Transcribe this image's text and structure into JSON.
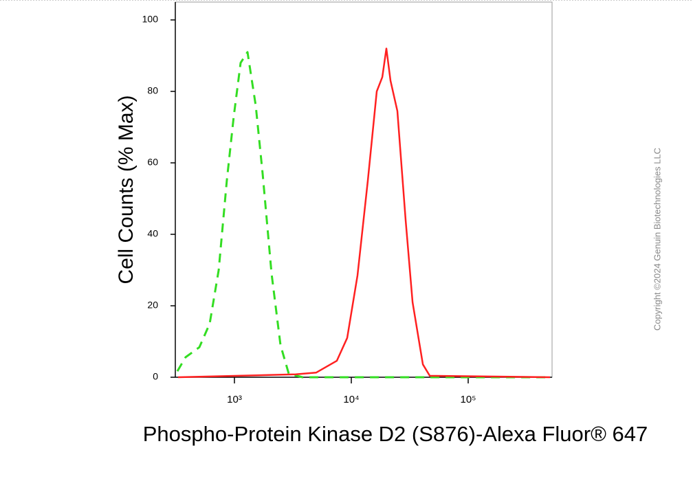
{
  "chart_data": {
    "type": "line",
    "xlabel": "Phospho-Protein Kinase D2 (S876)-Alexa Fluor® 647",
    "ylabel": "Cell Counts (% Max)",
    "copyright": "Copyright ©2024 Genuin Biotechnologies LLC",
    "xscale": "log",
    "xlim": [
      312,
      522000
    ],
    "xticks": [
      {
        "value": 1000,
        "label": "10³"
      },
      {
        "value": 10000,
        "label": "10⁴"
      },
      {
        "value": 100000,
        "label": "10⁵"
      }
    ],
    "ylim": [
      0,
      105
    ],
    "yticks": [
      0,
      20,
      40,
      60,
      80,
      100
    ],
    "series": [
      {
        "color": "#33dd22",
        "dashed": true,
        "x": [
          325,
          382,
          501,
          614,
          733,
          861,
          987,
          1130,
          1294,
          1521,
          1742,
          2078,
          2477,
          2915,
          3821,
          501000
        ],
        "values": [
          1.7,
          5.6,
          8.4,
          15,
          30,
          55,
          73,
          88,
          91,
          76,
          57,
          29,
          9,
          1,
          0,
          0
        ]
      },
      {
        "color": "#ff2020",
        "dashed": false,
        "x": [
          330,
          3342,
          5012,
          7516,
          9226,
          11290,
          13840,
          16500,
          18420,
          19960,
          21640,
          24770,
          29150,
          33420,
          40960,
          46880,
          501000
        ],
        "values": [
          0,
          0.8,
          1.3,
          4.6,
          11,
          28.5,
          55,
          80,
          84,
          92,
          83,
          74.5,
          44,
          21,
          3.6,
          0.4,
          0
        ]
      }
    ]
  }
}
